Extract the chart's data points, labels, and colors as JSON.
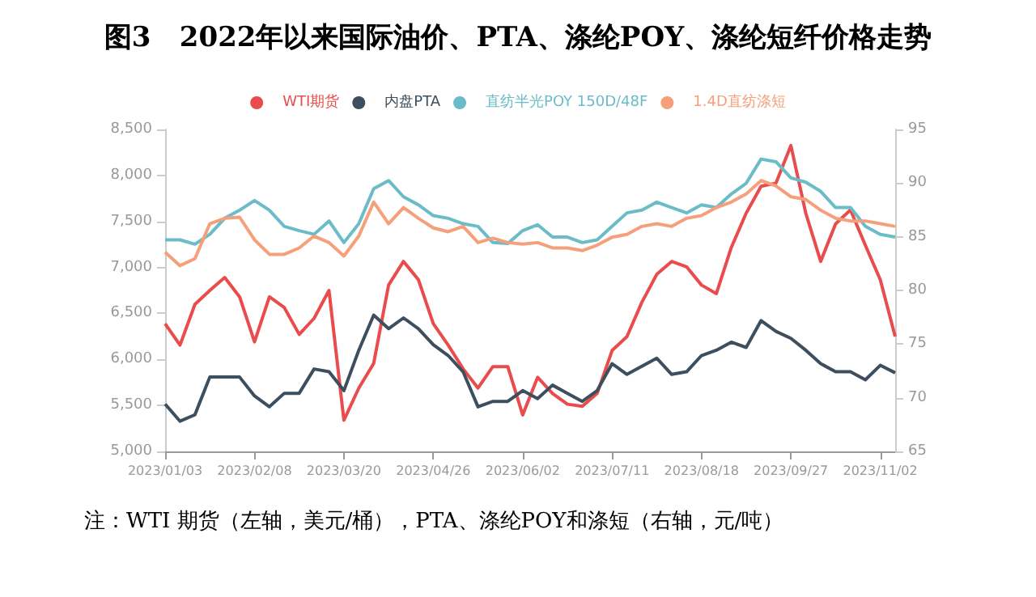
{
  "chart_data": {
    "type": "line",
    "title": "图3   2022年以来国际油价、PTA、涤纶POY、涤纶短纤价格走势",
    "categories": [
      "2023/01/03",
      null,
      null,
      null,
      null,
      null,
      "2023/02/08",
      null,
      null,
      null,
      null,
      null,
      "2023/03/20",
      null,
      null,
      null,
      null,
      null,
      "2023/04/26",
      null,
      null,
      null,
      null,
      null,
      "2023/06/02",
      null,
      null,
      null,
      null,
      null,
      "2023/07/11",
      null,
      null,
      null,
      null,
      null,
      "2023/08/18",
      null,
      null,
      null,
      null,
      null,
      "2023/09/27",
      null,
      null,
      null,
      null,
      null,
      "2023/11/02",
      null
    ],
    "series": [
      {
        "name": "WTI期货",
        "color": "#e84c4c",
        "axis": "y2",
        "values": [
          76.9,
          74.9,
          78.7,
          80.0,
          81.2,
          79.4,
          75.2,
          79.4,
          78.4,
          75.9,
          77.4,
          80.0,
          67.9,
          70.9,
          73.2,
          80.5,
          82.7,
          81.0,
          76.9,
          74.9,
          72.7,
          70.9,
          72.9,
          72.9,
          68.4,
          71.9,
          70.4,
          69.4,
          69.2,
          70.4,
          74.4,
          75.7,
          78.9,
          81.5,
          82.7,
          82.2,
          80.5,
          79.7,
          84.0,
          87.2,
          89.7,
          90.0,
          93.5,
          87.2,
          82.7,
          86.2,
          87.5,
          84.2,
          81.0,
          75.7
        ]
      },
      {
        "name": "内盘PTA",
        "color": "#3d4f5f",
        "values": [
          5515,
          5328,
          5398,
          5808,
          5808,
          5808,
          5603,
          5485,
          5632,
          5632,
          5896,
          5866,
          5661,
          6100,
          6481,
          6334,
          6451,
          6334,
          6159,
          6042,
          5866,
          5485,
          5544,
          5544,
          5661,
          5573,
          5720,
          5632,
          5544,
          5661,
          5954,
          5837,
          5925,
          6013,
          5837,
          5866,
          6042,
          6100,
          6188,
          6130,
          6422,
          6305,
          6229,
          6100,
          5954,
          5866,
          5866,
          5778,
          5936,
          5854
        ]
      },
      {
        "name": "直纺半光POY 150D/48F",
        "color": "#6bbcc8",
        "values": [
          7300,
          7300,
          7253,
          7360,
          7534,
          7622,
          7727,
          7622,
          7446,
          7400,
          7360,
          7505,
          7270,
          7475,
          7856,
          7944,
          7768,
          7680,
          7563,
          7534,
          7475,
          7446,
          7270,
          7259,
          7400,
          7464,
          7330,
          7330,
          7270,
          7300,
          7446,
          7593,
          7622,
          7710,
          7651,
          7593,
          7680,
          7651,
          7798,
          7915,
          8178,
          8149,
          7973,
          7926,
          7827,
          7651,
          7651,
          7446,
          7359,
          7330
        ]
      },
      {
        "name": "1.4D直纺涤短",
        "color": "#f5a07a",
        "values": [
          7166,
          7019,
          7095,
          7475,
          7534,
          7546,
          7300,
          7142,
          7142,
          7212,
          7341,
          7270,
          7124,
          7341,
          7710,
          7475,
          7651,
          7534,
          7429,
          7388,
          7446,
          7270,
          7318,
          7270,
          7253,
          7270,
          7212,
          7212,
          7183,
          7242,
          7329,
          7359,
          7446,
          7476,
          7446,
          7534,
          7563,
          7651,
          7710,
          7798,
          7944,
          7885,
          7768,
          7739,
          7622,
          7534,
          7505,
          7505,
          7476,
          7446
        ]
      }
    ],
    "ylim": [
      5000,
      8500
    ],
    "yticks": [
      {
        "value": 5000,
        "label": "5,000"
      },
      {
        "value": 5500,
        "label": "5,500"
      },
      {
        "value": 6000,
        "label": "6,000"
      },
      {
        "value": 6500,
        "label": "6,500"
      },
      {
        "value": 7000,
        "label": "7,000"
      },
      {
        "value": 7500,
        "label": "7,500"
      },
      {
        "value": 8000,
        "label": "8,000"
      },
      {
        "value": 8500,
        "label": "8,500"
      }
    ],
    "y2lim": [
      65,
      95
    ],
    "y2ticks": [
      65,
      70,
      75,
      80,
      85,
      90,
      95
    ],
    "legend": "top",
    "grid": false,
    "marker": "none",
    "line_style": "solid",
    "annotations": [
      "注：WTI 期货（左轴，美元/桶），PTA、涤纶POY和涤短（右轴，元/吨）"
    ]
  }
}
